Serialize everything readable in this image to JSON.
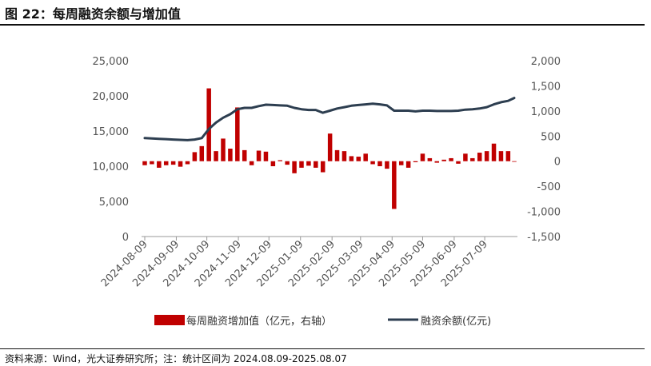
{
  "header": {
    "title": "图 22：每周融资余额与增加值"
  },
  "footer": {
    "source": "资料来源：Wind，光大证券研究所；注：统计区间为 2024.08.09-2025.08.07"
  },
  "colors": {
    "bar": "#c00000",
    "line": "#2d3e50"
  },
  "chart_data": {
    "type": "bar+line",
    "x_tick_labels": [
      "2024-08-09",
      "2024-09-09",
      "2024-10-09",
      "2024-11-09",
      "2024-12-09",
      "2025-01-09",
      "2025-02-09",
      "2025-03-09",
      "2025-04-09",
      "2025-05-09",
      "2025-06-09",
      "2025-07-09"
    ],
    "y_left": {
      "ticks": [
        "0",
        "5,000",
        "10,000",
        "15,000",
        "20,000",
        "25,000"
      ],
      "ylim": [
        0,
        25000
      ]
    },
    "y_right": {
      "ticks": [
        "-1,500",
        "-1,000",
        "-500",
        "0",
        "500",
        "1,000",
        "1,500",
        "2,000"
      ],
      "ylim": [
        -1500,
        2000
      ]
    },
    "series": [
      {
        "name": "每周融资增加值（亿元，右轴）",
        "type": "bar",
        "axis": "right",
        "dates": [
          "2024-08-09",
          "2024-08-16",
          "2024-08-23",
          "2024-08-30",
          "2024-09-06",
          "2024-09-13",
          "2024-09-20",
          "2024-09-27",
          "2024-10-04",
          "2024-10-11",
          "2024-10-18",
          "2024-10-25",
          "2024-11-01",
          "2024-11-08",
          "2024-11-15",
          "2024-11-22",
          "2024-11-29",
          "2024-12-06",
          "2024-12-13",
          "2024-12-20",
          "2024-12-27",
          "2025-01-03",
          "2025-01-10",
          "2025-01-17",
          "2025-01-24",
          "2025-01-31",
          "2025-02-07",
          "2025-02-14",
          "2025-02-21",
          "2025-02-28",
          "2025-03-07",
          "2025-03-14",
          "2025-03-21",
          "2025-03-28",
          "2025-04-04",
          "2025-04-11",
          "2025-04-18",
          "2025-04-25",
          "2025-05-02",
          "2025-05-09",
          "2025-05-16",
          "2025-05-23",
          "2025-05-30",
          "2025-06-06",
          "2025-06-13",
          "2025-06-20",
          "2025-06-27",
          "2025-07-04",
          "2025-07-11",
          "2025-07-18",
          "2025-07-25",
          "2025-08-01",
          "2025-08-07"
        ],
        "values": [
          -80,
          -60,
          -130,
          -80,
          -70,
          -110,
          -60,
          180,
          300,
          1450,
          200,
          450,
          250,
          1070,
          220,
          -80,
          210,
          190,
          -100,
          20,
          -70,
          -240,
          -130,
          -90,
          -130,
          -220,
          550,
          220,
          200,
          100,
          90,
          150,
          -60,
          -100,
          -150,
          -950,
          -80,
          -130,
          -20,
          150,
          60,
          -30,
          30,
          60,
          -50,
          150,
          60,
          170,
          200,
          350,
          200,
          200,
          -10
        ]
      },
      {
        "name": "融资余额(亿元)",
        "type": "line",
        "axis": "left",
        "dates": [
          "2024-08-09",
          "2024-08-16",
          "2024-08-23",
          "2024-08-30",
          "2024-09-06",
          "2024-09-13",
          "2024-09-20",
          "2024-09-27",
          "2024-10-04",
          "2024-10-11",
          "2024-10-18",
          "2024-10-25",
          "2024-11-01",
          "2024-11-08",
          "2024-11-15",
          "2024-11-22",
          "2024-11-29",
          "2024-12-06",
          "2024-12-13",
          "2024-12-20",
          "2024-12-27",
          "2025-01-03",
          "2025-01-10",
          "2025-01-17",
          "2025-01-24",
          "2025-01-31",
          "2025-02-07",
          "2025-02-14",
          "2025-02-21",
          "2025-02-28",
          "2025-03-07",
          "2025-03-14",
          "2025-03-21",
          "2025-03-28",
          "2025-04-04",
          "2025-04-11",
          "2025-04-18",
          "2025-04-25",
          "2025-05-02",
          "2025-05-09",
          "2025-05-16",
          "2025-05-23",
          "2025-05-30",
          "2025-06-06",
          "2025-06-13",
          "2025-06-20",
          "2025-06-27",
          "2025-07-04",
          "2025-07-11",
          "2025-07-18",
          "2025-07-25",
          "2025-08-01",
          "2025-08-07"
        ],
        "values": [
          14000,
          13950,
          13900,
          13850,
          13800,
          13750,
          13700,
          13800,
          14000,
          15300,
          16200,
          16900,
          17400,
          18100,
          18300,
          18300,
          18550,
          18750,
          18700,
          18650,
          18600,
          18300,
          18100,
          18000,
          18000,
          17600,
          17900,
          18200,
          18400,
          18600,
          18700,
          18800,
          18900,
          18800,
          18650,
          17900,
          17900,
          17900,
          17800,
          17900,
          17900,
          17850,
          17850,
          17850,
          17900,
          18050,
          18100,
          18200,
          18400,
          18800,
          19100,
          19300,
          19700
        ]
      }
    ]
  }
}
